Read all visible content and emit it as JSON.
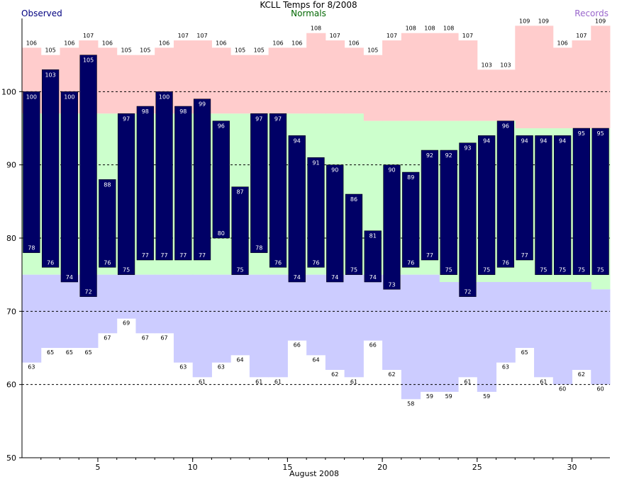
{
  "chart_data": {
    "type": "bar",
    "title": "KCLL Temps for 8/2008",
    "xlabel": "August 2008",
    "ylabel": "",
    "ylim": [
      50,
      110
    ],
    "y_ticks": [
      50,
      60,
      70,
      80,
      90,
      100
    ],
    "x_ticks": [
      5,
      10,
      15,
      20,
      25,
      30
    ],
    "legend": [
      "Observed",
      "Normals",
      "Records"
    ],
    "days": [
      1,
      2,
      3,
      4,
      5,
      6,
      7,
      8,
      9,
      10,
      11,
      12,
      13,
      14,
      15,
      16,
      17,
      18,
      19,
      20,
      21,
      22,
      23,
      24,
      25,
      26,
      27,
      28,
      29,
      30,
      31
    ],
    "series": [
      {
        "name": "Observed",
        "type": "range",
        "high": [
          100,
          103,
          100,
          105,
          88,
          97,
          98,
          100,
          98,
          99,
          96,
          87,
          97,
          97,
          94,
          91,
          90,
          86,
          81,
          90,
          89,
          92,
          92,
          93,
          94,
          96,
          94,
          94,
          94,
          95,
          95
        ],
        "low": [
          78,
          76,
          74,
          72,
          76,
          75,
          77,
          77,
          77,
          77,
          80,
          75,
          78,
          76,
          74,
          76,
          74,
          75,
          74,
          73,
          76,
          77,
          75,
          72,
          75,
          76,
          77,
          75,
          75,
          75,
          75
        ]
      },
      {
        "name": "Normals",
        "type": "range",
        "high": [
          97,
          97,
          97,
          97,
          97,
          97,
          97,
          97,
          97,
          97,
          97,
          97,
          97,
          97,
          97,
          97,
          97,
          97,
          96,
          96,
          96,
          96,
          96,
          96,
          96,
          96,
          95,
          95,
          95,
          95,
          95
        ],
        "low": [
          75,
          75,
          75,
          75,
          75,
          75,
          75,
          75,
          75,
          75,
          75,
          75,
          75,
          75,
          75,
          75,
          75,
          75,
          75,
          75,
          75,
          75,
          74,
          74,
          74,
          74,
          74,
          74,
          74,
          74,
          73
        ]
      },
      {
        "name": "Records",
        "type": "range",
        "high": [
          106,
          105,
          106,
          107,
          106,
          105,
          105,
          106,
          107,
          107,
          106,
          105,
          105,
          106,
          106,
          108,
          107,
          106,
          105,
          107,
          108,
          108,
          108,
          107,
          103,
          103,
          109,
          109,
          106,
          107,
          109
        ],
        "low": [
          63,
          65,
          65,
          65,
          67,
          69,
          67,
          67,
          63,
          61,
          63,
          64,
          61,
          61,
          66,
          64,
          62,
          61,
          66,
          62,
          58,
          59,
          59,
          61,
          59,
          63,
          65,
          61,
          60,
          62,
          60
        ]
      }
    ],
    "colors": {
      "observed": "#000066",
      "normals": "#ccffcc",
      "record_high": "#ffcccc",
      "record_low": "#ccccff",
      "observed_label": "#000080",
      "normals_label": "#006600",
      "records_label": "#9966cc"
    },
    "grid": "dashed at 60, 70, 80, 90, 100"
  }
}
